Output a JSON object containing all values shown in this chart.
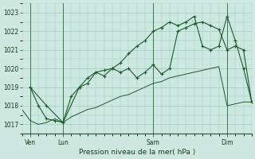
{
  "xlabel": "Pression niveau de la mer( hPa )",
  "bg_color": "#cce8e0",
  "grid_color": "#aacccc",
  "line_color": "#1a5c2a",
  "ylim": [
    1016.5,
    1023.5
  ],
  "yticks": [
    1017,
    1018,
    1019,
    1020,
    1021,
    1022,
    1023
  ],
  "xlim": [
    0,
    56
  ],
  "day_positions": [
    2,
    10,
    32,
    50
  ],
  "day_labels": [
    "Ven",
    "Lun",
    "Sam",
    "Dim"
  ],
  "series_smooth_x": [
    0,
    2,
    4,
    6,
    8,
    10,
    12,
    14,
    16,
    18,
    20,
    22,
    24,
    26,
    28,
    30,
    32,
    34,
    36,
    38,
    40,
    42,
    44,
    46,
    48,
    50,
    52,
    54,
    56
  ],
  "series_smooth_y": [
    1017.8,
    1017.2,
    1017.0,
    1017.1,
    1017.3,
    1017.1,
    1017.4,
    1017.6,
    1017.8,
    1017.9,
    1018.1,
    1018.3,
    1018.5,
    1018.6,
    1018.8,
    1019.0,
    1019.2,
    1019.3,
    1019.5,
    1019.6,
    1019.7,
    1019.8,
    1019.9,
    1020.0,
    1020.1,
    1018.0,
    1018.1,
    1018.2,
    1018.2
  ],
  "series_jagged_x": [
    2,
    4,
    6,
    8,
    10,
    12,
    14,
    16,
    18,
    20,
    22,
    24,
    26,
    28,
    30,
    32,
    34,
    36,
    38,
    40,
    42,
    44,
    46,
    48,
    50,
    52,
    54,
    56
  ],
  "series_jagged_y": [
    1019.0,
    1018.0,
    1017.3,
    1017.2,
    1017.1,
    1018.5,
    1019.0,
    1019.2,
    1019.8,
    1019.6,
    1020.0,
    1019.8,
    1020.0,
    1019.5,
    1019.8,
    1020.2,
    1019.7,
    1020.0,
    1022.0,
    1022.2,
    1022.4,
    1022.5,
    1022.3,
    1022.1,
    1021.0,
    1021.2,
    1021.0,
    1018.2
  ],
  "series_main_x": [
    2,
    6,
    10,
    14,
    16,
    18,
    20,
    22,
    24,
    26,
    28,
    30,
    32,
    34,
    36,
    38,
    40,
    42,
    44,
    46,
    48,
    50,
    52,
    54,
    56
  ],
  "series_main_y": [
    1019.0,
    1018.0,
    1017.1,
    1019.0,
    1019.5,
    1019.8,
    1019.9,
    1020.0,
    1020.3,
    1020.8,
    1021.2,
    1021.5,
    1022.0,
    1022.2,
    1022.5,
    1022.3,
    1022.5,
    1022.8,
    1021.2,
    1021.0,
    1021.2,
    1022.8,
    1021.5,
    1020.0,
    1018.2
  ]
}
